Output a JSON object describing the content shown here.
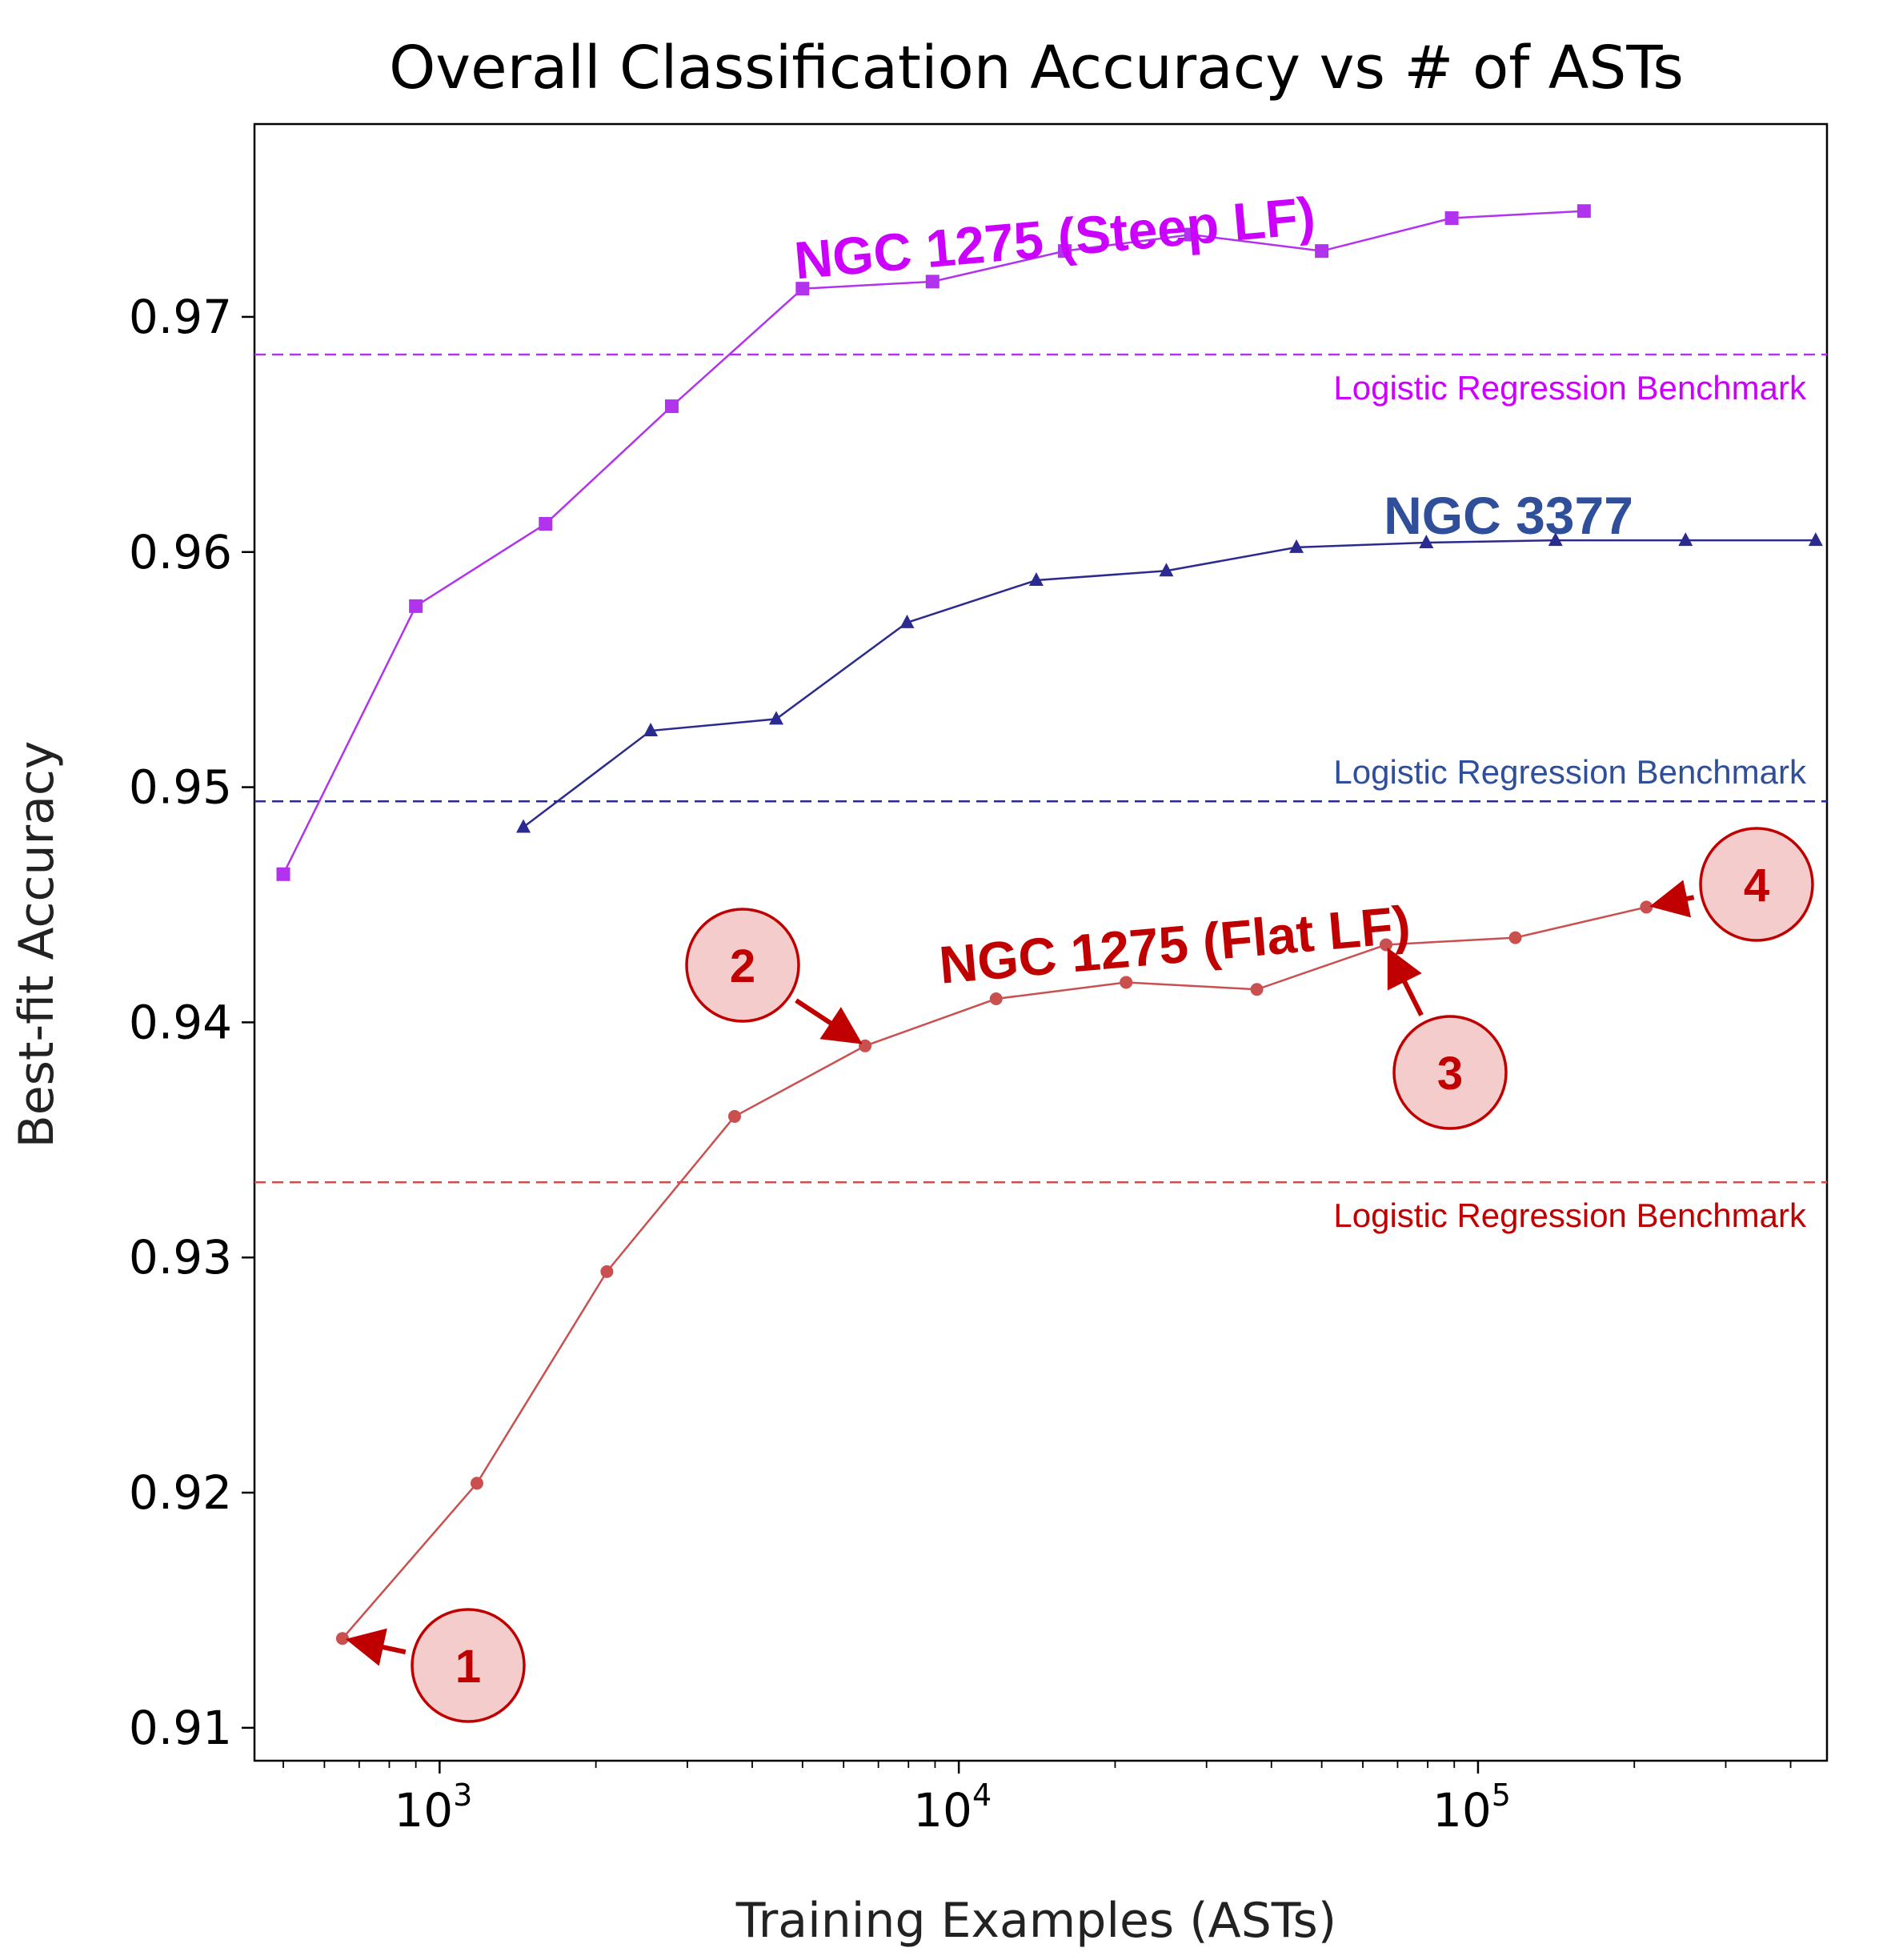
{
  "chart_data": {
    "type": "line",
    "title": "Overall Classification Accuracy vs # of ASTs",
    "xlabel": "Training Examples (ASTs)",
    "ylabel": "Best-fit Accuracy",
    "xscale": "log",
    "xlim": [
      440,
      470000
    ],
    "ylim": [
      0.9086,
      0.9782
    ],
    "yticks": [
      0.91,
      0.92,
      0.93,
      0.94,
      0.95,
      0.96,
      0.97
    ],
    "ytick_labels": [
      "0.91",
      "0.92",
      "0.93",
      "0.94",
      "0.95",
      "0.96",
      "0.97"
    ],
    "xticks": [
      1000,
      10000,
      100000
    ],
    "xtick_bases": [
      "10",
      "10",
      "10"
    ],
    "xtick_exps": [
      "3",
      "4",
      "5"
    ],
    "series": [
      {
        "name": "NGC 1275 (Steep LF)",
        "color": "#b133ee",
        "marker": "square",
        "x": [
          500,
          900,
          1600,
          2800,
          5000,
          8900,
          16000,
          28000,
          50000,
          89000,
          160000
        ],
        "y": [
          0.9463,
          0.9577,
          0.9612,
          0.9662,
          0.9712,
          0.9715,
          0.9728,
          0.9735,
          0.9728,
          0.9742,
          0.9745
        ]
      },
      {
        "name": "NGC 3377",
        "color": "#2b2b8f",
        "marker": "triangle",
        "x": [
          1450,
          2550,
          4450,
          7950,
          14100,
          25100,
          44700,
          79500,
          141000,
          251000,
          447000
        ],
        "y": [
          0.9483,
          0.9524,
          0.9529,
          0.957,
          0.9588,
          0.9592,
          0.9602,
          0.9604,
          0.9605,
          0.9605,
          0.9605
        ]
      },
      {
        "name": "NGC 1275 (Flat LF)",
        "color": "#c9504e",
        "marker": "circle",
        "x": [
          650,
          1180,
          2100,
          3700,
          6600,
          11800,
          21000,
          37500,
          66500,
          118000,
          211000
        ],
        "y": [
          0.9138,
          0.9204,
          0.9294,
          0.936,
          0.939,
          0.941,
          0.9417,
          0.9414,
          0.9433,
          0.9436,
          0.9449
        ]
      }
    ],
    "benchmarks": [
      {
        "label": "Logistic Regression Benchmark",
        "value": 0.9684,
        "color": "#b133ee"
      },
      {
        "label": "Logistic Regression Benchmark",
        "value": 0.9494,
        "color": "#2b2b8f"
      },
      {
        "label": "Logistic Regression Benchmark",
        "value": 0.9332,
        "color": "#c9504e"
      }
    ],
    "annotations": [
      {
        "label": "NGC 1275 (Steep LF)",
        "color": "#cc00ff"
      },
      {
        "label": "NGC 3377",
        "color": "#2f4f9a"
      },
      {
        "label": "NGC 1275 (Flat LF)",
        "color": "#c00000"
      }
    ],
    "callouts": [
      {
        "number": "1",
        "target_x": 650,
        "target_y": 0.9138
      },
      {
        "number": "2",
        "target_x": 6600,
        "target_y": 0.939
      },
      {
        "number": "3",
        "target_x": 66500,
        "target_y": 0.9433
      },
      {
        "number": "4",
        "target_x": 211000,
        "target_y": 0.9449
      }
    ],
    "bench_label_colors": [
      "#cc00ff",
      "#2f4f9a",
      "#c00000"
    ]
  }
}
